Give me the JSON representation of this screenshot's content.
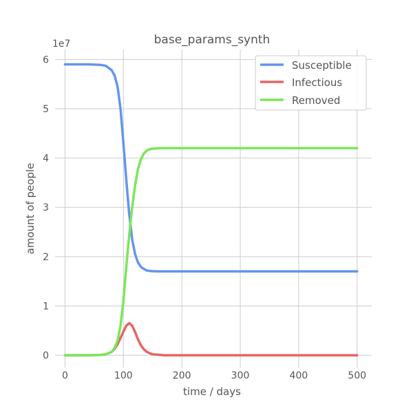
{
  "chart_data": {
    "type": "line",
    "title": "base_params_synth",
    "xlabel": "time / days",
    "ylabel": "amount of people",
    "y_scale_label": "1e7",
    "xlim": [
      -17,
      525
    ],
    "ylim": [
      -0.25,
      6.2
    ],
    "x_ticks": [
      0,
      100,
      200,
      300,
      400,
      500
    ],
    "x_tick_labels": [
      "0",
      "100",
      "200",
      "300",
      "400",
      "500"
    ],
    "y_ticks": [
      0,
      1,
      2,
      3,
      4,
      5,
      6
    ],
    "y_tick_labels": [
      "0",
      "1",
      "2",
      "3",
      "4",
      "5",
      "6"
    ],
    "grid": true,
    "legend_position": "top-right",
    "x": [
      0,
      20,
      40,
      60,
      70,
      80,
      85,
      90,
      95,
      100,
      105,
      110,
      115,
      120,
      125,
      130,
      135,
      140,
      145,
      150,
      160,
      170,
      180,
      190,
      200,
      250,
      300,
      350,
      400,
      450,
      500
    ],
    "series": [
      {
        "name": "Susceptible",
        "color": "#6495ed",
        "values": [
          5.9,
          5.9,
          5.9,
          5.89,
          5.87,
          5.78,
          5.67,
          5.45,
          5.0,
          4.3,
          3.55,
          2.85,
          2.35,
          2.05,
          1.88,
          1.79,
          1.75,
          1.72,
          1.71,
          1.705,
          1.7,
          1.7,
          1.7,
          1.7,
          1.7,
          1.7,
          1.7,
          1.7,
          1.7,
          1.7,
          1.7
        ]
      },
      {
        "name": "Infectious",
        "color": "#e66464",
        "values": [
          0.0,
          0.0,
          0.0,
          0.005,
          0.02,
          0.07,
          0.13,
          0.22,
          0.35,
          0.48,
          0.6,
          0.65,
          0.6,
          0.47,
          0.32,
          0.2,
          0.12,
          0.07,
          0.04,
          0.02,
          0.01,
          0.0,
          0.0,
          0.0,
          0.0,
          0.0,
          0.0,
          0.0,
          0.0,
          0.0,
          0.0
        ]
      },
      {
        "name": "Removed",
        "color": "#7be65a",
        "values": [
          0.0,
          0.0,
          0.0,
          0.005,
          0.02,
          0.07,
          0.15,
          0.3,
          0.6,
          1.1,
          1.8,
          2.45,
          3.0,
          3.45,
          3.78,
          3.98,
          4.09,
          4.15,
          4.18,
          4.19,
          4.2,
          4.2,
          4.2,
          4.2,
          4.2,
          4.2,
          4.2,
          4.2,
          4.2,
          4.2,
          4.2
        ]
      }
    ]
  }
}
